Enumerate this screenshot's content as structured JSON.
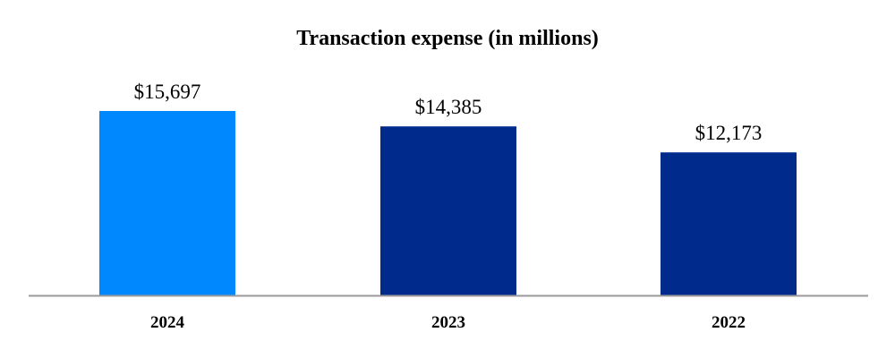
{
  "chart_data": {
    "type": "bar",
    "title": "Transaction expense (in  millions)",
    "xlabel": "",
    "ylabel": "",
    "categories": [
      "2024",
      "2023",
      "2022"
    ],
    "values": [
      15697,
      14385,
      12173
    ],
    "data_labels": [
      "$15,697",
      "$14,385",
      "$12,173"
    ],
    "colors": [
      "#0088FF",
      "#002B8C",
      "#002B8C"
    ],
    "axis_color": "#9A9A9A",
    "grid": false,
    "legend": "none"
  }
}
